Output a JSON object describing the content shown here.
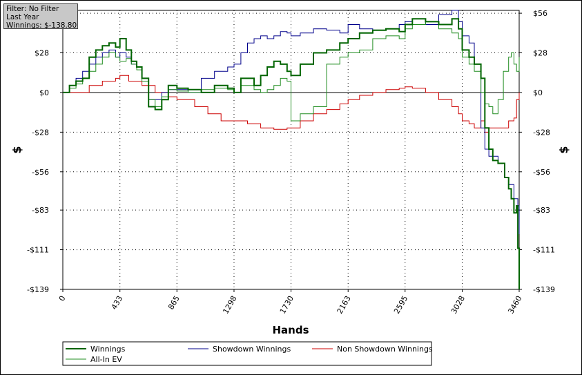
{
  "info_box": {
    "filter": "Filter: No Filter",
    "period": "Last Year",
    "winnings": "Winnings: $-138.80"
  },
  "chart_data": {
    "type": "line",
    "xlabel": "Hands",
    "ylabel_left": "$",
    "ylabel_right": "$",
    "xlim": [
      0,
      3460
    ],
    "ylim": [
      -139,
      58
    ],
    "x_ticks": [
      0,
      433,
      865,
      1298,
      1730,
      2163,
      2595,
      3028,
      3460
    ],
    "y_ticks": [
      56,
      28,
      0,
      -28,
      -56,
      -83,
      -111,
      -139
    ],
    "y_tick_labels": [
      "$56",
      "$28",
      "$0",
      "-$28",
      "-$56",
      "-$83",
      "-$111",
      "-$139"
    ],
    "grid": true,
    "legend_position": "bottom",
    "series": [
      {
        "name": "Winnings",
        "color": "#006400",
        "x": [
          0,
          50,
          100,
          150,
          200,
          250,
          300,
          350,
          400,
          433,
          480,
          520,
          560,
          600,
          650,
          700,
          750,
          800,
          865,
          950,
          1050,
          1150,
          1250,
          1298,
          1350,
          1450,
          1500,
          1550,
          1600,
          1650,
          1700,
          1730,
          1800,
          1900,
          2000,
          2100,
          2163,
          2250,
          2350,
          2450,
          2550,
          2595,
          2650,
          2750,
          2850,
          2950,
          3000,
          3028,
          3080,
          3120,
          3170,
          3200,
          3230,
          3260,
          3300,
          3350,
          3380,
          3400,
          3420,
          3440,
          3450,
          3460
        ],
        "y": [
          0,
          5,
          8,
          10,
          25,
          30,
          33,
          35,
          32,
          38,
          30,
          22,
          18,
          10,
          -10,
          -12,
          -5,
          5,
          3,
          2,
          0,
          5,
          3,
          0,
          10,
          5,
          12,
          18,
          22,
          20,
          15,
          12,
          20,
          28,
          30,
          35,
          38,
          42,
          44,
          45,
          43,
          48,
          52,
          50,
          48,
          52,
          45,
          30,
          25,
          20,
          10,
          -25,
          -40,
          -48,
          -50,
          -60,
          -68,
          -75,
          -85,
          -80,
          -110,
          -139
        ]
      },
      {
        "name": "Showdown Winnings",
        "color": "#00008b",
        "x": [
          0,
          50,
          100,
          150,
          200,
          250,
          300,
          350,
          400,
          433,
          480,
          520,
          560,
          600,
          650,
          700,
          750,
          800,
          865,
          950,
          1050,
          1150,
          1250,
          1298,
          1350,
          1400,
          1450,
          1500,
          1550,
          1600,
          1650,
          1700,
          1730,
          1800,
          1900,
          2000,
          2100,
          2163,
          2250,
          2350,
          2450,
          2550,
          2595,
          2650,
          2750,
          2850,
          2950,
          3000,
          3028,
          3080,
          3120,
          3170,
          3200,
          3230,
          3260,
          3300,
          3350,
          3380,
          3420,
          3450,
          3460
        ],
        "y": [
          0,
          5,
          10,
          15,
          20,
          25,
          28,
          30,
          25,
          28,
          25,
          20,
          18,
          10,
          -5,
          -5,
          0,
          2,
          2,
          0,
          10,
          15,
          18,
          20,
          28,
          35,
          38,
          40,
          38,
          40,
          43,
          42,
          40,
          42,
          45,
          44,
          42,
          48,
          45,
          44,
          45,
          48,
          50,
          52,
          48,
          55,
          58,
          50,
          40,
          35,
          20,
          -25,
          -40,
          -45,
          -45,
          -50,
          -60,
          -65,
          -75,
          -80,
          -100
        ]
      },
      {
        "name": "Non Showdown Winnings",
        "color": "#cc0000",
        "x": [
          0,
          100,
          200,
          300,
          400,
          433,
          500,
          600,
          700,
          800,
          865,
          1000,
          1100,
          1200,
          1298,
          1400,
          1500,
          1600,
          1700,
          1730,
          1800,
          1900,
          2000,
          2100,
          2163,
          2250,
          2350,
          2450,
          2550,
          2595,
          2650,
          2750,
          2850,
          2950,
          3000,
          3028,
          3080,
          3120,
          3170,
          3200,
          3230,
          3260,
          3300,
          3350,
          3380,
          3420,
          3440,
          3460
        ],
        "y": [
          0,
          0,
          5,
          8,
          10,
          12,
          8,
          5,
          0,
          -3,
          -5,
          -10,
          -15,
          -20,
          -20,
          -22,
          -25,
          -26,
          -25,
          -25,
          -20,
          -15,
          -12,
          -8,
          -5,
          -2,
          0,
          2,
          3,
          4,
          3,
          0,
          -5,
          -10,
          -15,
          -20,
          -22,
          -25,
          -20,
          -28,
          -25,
          -25,
          -25,
          -25,
          -20,
          -18,
          -5,
          0
        ]
      },
      {
        "name": "All-In EV",
        "color": "#1f8c1f",
        "x": [
          0,
          50,
          100,
          150,
          200,
          250,
          300,
          350,
          400,
          433,
          480,
          520,
          560,
          600,
          650,
          700,
          750,
          800,
          865,
          950,
          1050,
          1150,
          1250,
          1298,
          1350,
          1450,
          1500,
          1550,
          1600,
          1650,
          1700,
          1730,
          1800,
          1900,
          2000,
          2100,
          2163,
          2250,
          2350,
          2450,
          2550,
          2595,
          2650,
          2750,
          2850,
          2950,
          3000,
          3028,
          3080,
          3120,
          3170,
          3200,
          3230,
          3260,
          3300,
          3340,
          3380,
          3400,
          3420,
          3440,
          3460
        ],
        "y": [
          0,
          3,
          6,
          10,
          15,
          20,
          25,
          28,
          25,
          22,
          24,
          20,
          16,
          8,
          -5,
          -10,
          -3,
          2,
          1,
          0,
          2,
          3,
          2,
          0,
          5,
          2,
          0,
          2,
          5,
          10,
          8,
          -20,
          -15,
          -10,
          20,
          25,
          28,
          30,
          38,
          40,
          38,
          45,
          48,
          50,
          45,
          42,
          38,
          25,
          20,
          15,
          0,
          -8,
          -10,
          -15,
          -5,
          15,
          25,
          28,
          20,
          15,
          25
        ]
      }
    ]
  },
  "legend": [
    {
      "label": "Winnings",
      "color": "#006400"
    },
    {
      "label": "Showdown Winnings",
      "color": "#00008b"
    },
    {
      "label": "Non Showdown Winnings",
      "color": "#cc0000"
    },
    {
      "label": "All-In EV",
      "color": "#1f8c1f"
    }
  ]
}
